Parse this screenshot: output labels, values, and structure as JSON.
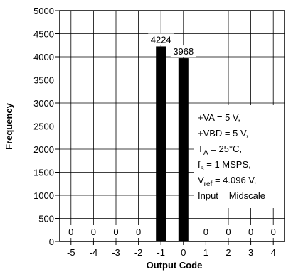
{
  "chart_data": {
    "type": "bar",
    "categories": [
      "-5",
      "-4",
      "-3",
      "-2",
      "-1",
      "0",
      "1",
      "2",
      "3",
      "4"
    ],
    "values": [
      0,
      0,
      0,
      0,
      4224,
      3968,
      0,
      0,
      0,
      0
    ],
    "data_labels": [
      "0",
      "0",
      "0",
      "0",
      "4224",
      "3968",
      "0",
      "0",
      "0",
      "0"
    ],
    "xlabel": "Output Code",
    "ylabel": "Frequency",
    "ylim": [
      0,
      5000
    ],
    "yticks": [
      "0",
      "500",
      "1000",
      "1500",
      "2000",
      "2500",
      "3000",
      "3500",
      "4000",
      "4500",
      "5000"
    ],
    "grid": true,
    "bar_color": "#000000",
    "annotation": {
      "lines": [
        [
          "+VA = 5 V,"
        ],
        [
          "+VBD = 5 V,"
        ],
        [
          "T",
          "A",
          " = 25°C,"
        ],
        [
          "f",
          "s",
          " = 1 MSPS,"
        ],
        [
          "V",
          "ref",
          " = 4.096 V,"
        ],
        [
          "Input = Midscale"
        ]
      ]
    }
  }
}
